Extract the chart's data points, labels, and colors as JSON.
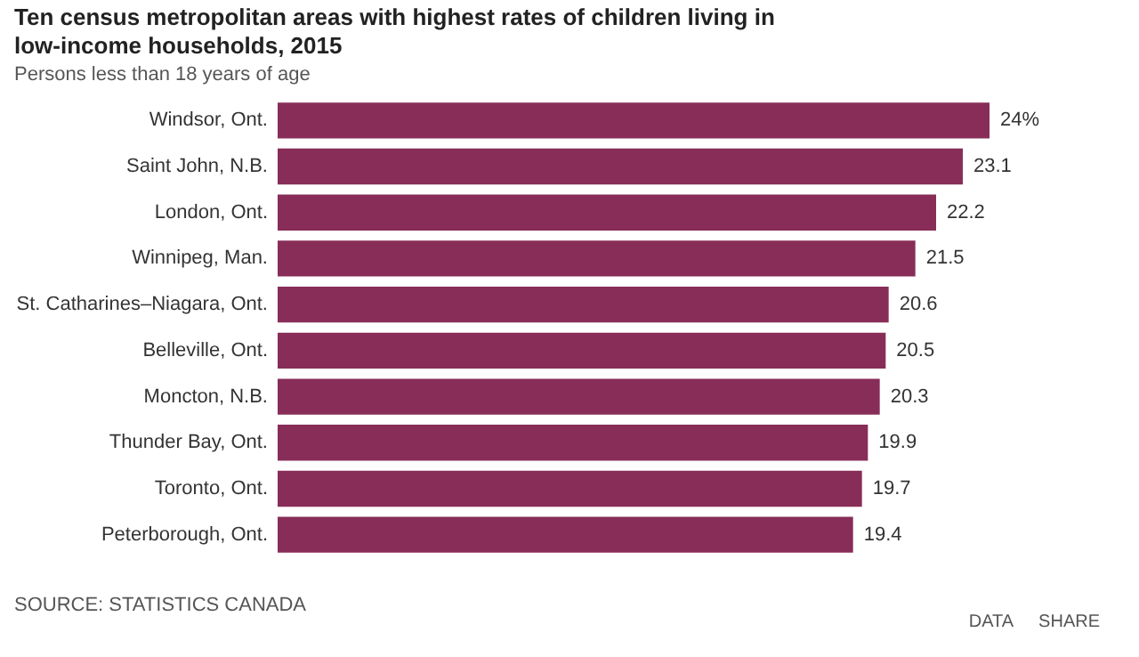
{
  "chart_data": {
    "type": "bar",
    "orientation": "horizontal",
    "title": "Ten census metropolitan areas with highest rates of children living in low-income households, 2015",
    "subtitle": "Persons less than 18 years of age",
    "categories": [
      "Windsor, Ont.",
      "Saint John, N.B.",
      "London, Ont.",
      "Winnipeg, Man.",
      "St. Catharines–Niagara, Ont.",
      "Belleville, Ont.",
      "Moncton, N.B.",
      "Thunder Bay, Ont.",
      "Toronto, Ont.",
      "Peterborough, Ont."
    ],
    "values": [
      24,
      23.1,
      22.2,
      21.5,
      20.6,
      20.5,
      20.3,
      19.9,
      19.7,
      19.4
    ],
    "value_labels": [
      "24%",
      "23.1",
      "22.2",
      "21.5",
      "20.6",
      "20.5",
      "20.3",
      "19.9",
      "19.7",
      "19.4"
    ],
    "color": "#882d58",
    "annotations": [
      "SOURCE: STATISTICS CANADA",
      "DATA",
      "SHARE"
    ]
  }
}
